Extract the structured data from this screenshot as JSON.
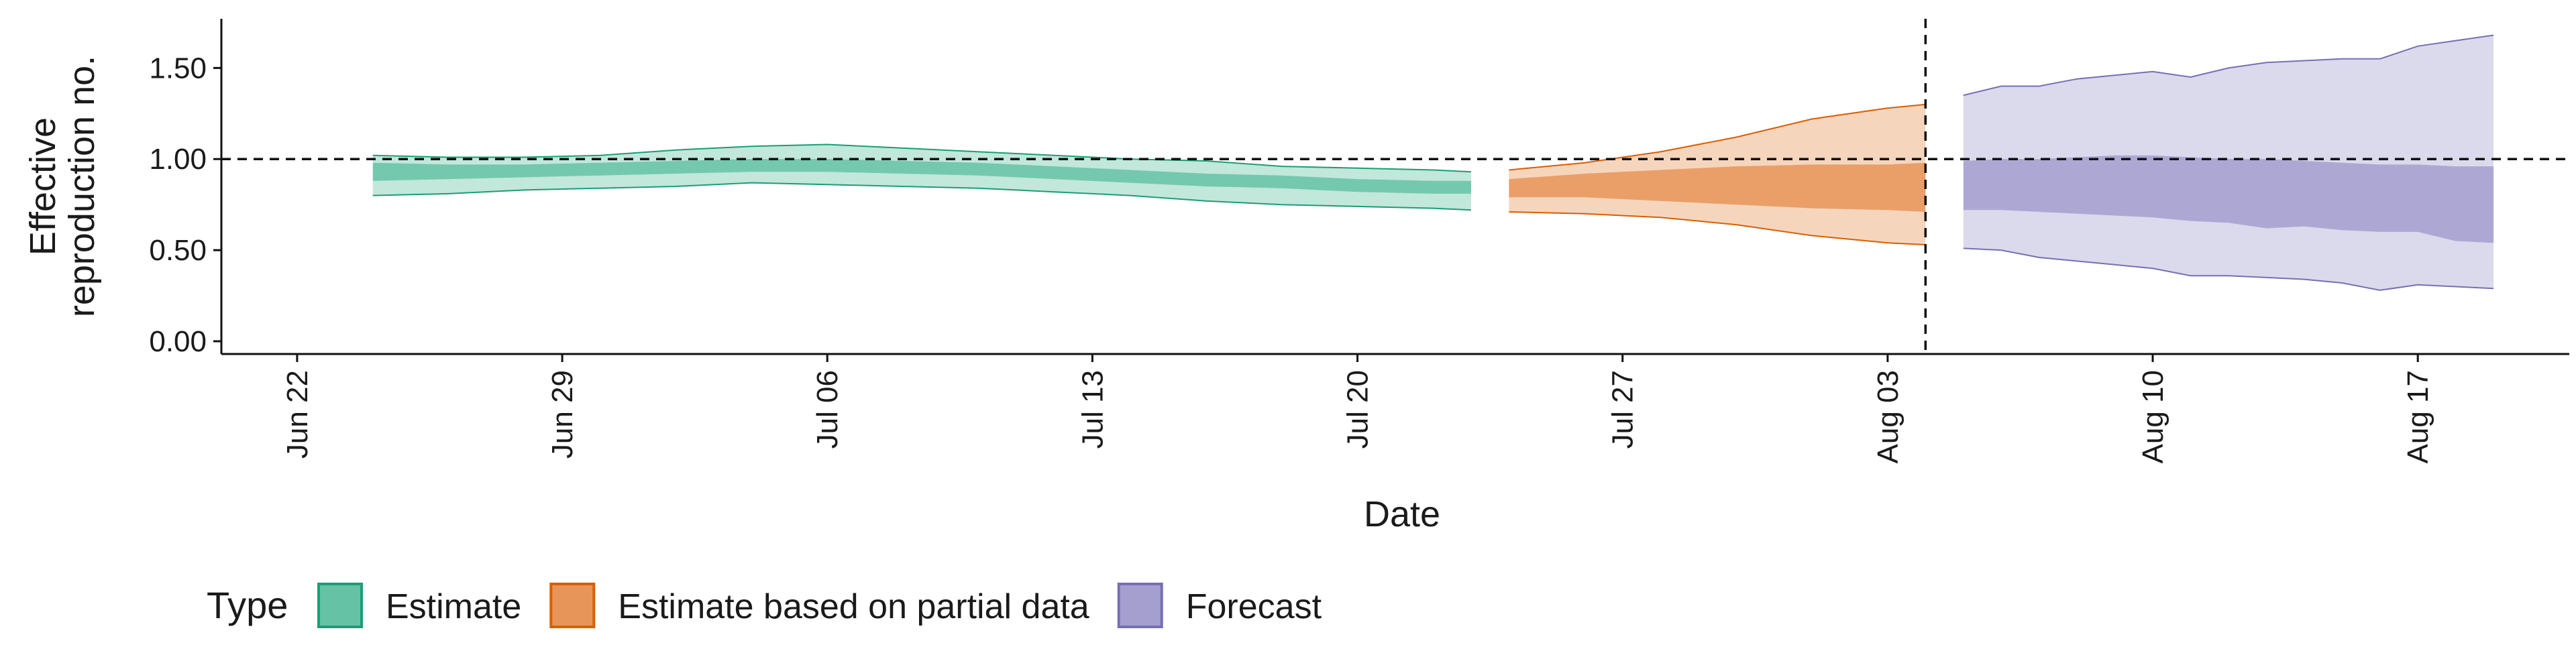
{
  "chart_data": {
    "type": "area",
    "xlabel": "Date",
    "ylabel": [
      "Effective",
      "reproduction no."
    ],
    "ylim": [
      -0.07,
      1.77
    ],
    "xlim": [
      "2020-06-20",
      "2020-08-21"
    ],
    "y_ticks": [
      0.0,
      0.5,
      1.0,
      1.5
    ],
    "y_tick_labels": [
      "0.00",
      "0.50",
      "1.00",
      "1.50"
    ],
    "x_ticks": [
      "2020-06-22",
      "2020-06-29",
      "2020-07-06",
      "2020-07-13",
      "2020-07-20",
      "2020-07-27",
      "2020-08-03",
      "2020-08-10",
      "2020-08-17"
    ],
    "x_tick_labels": [
      "Jun 22",
      "Jun 29",
      "Jul 06",
      "Jul 13",
      "Jul 20",
      "Jul 27",
      "Aug 03",
      "Aug 10",
      "Aug 17"
    ],
    "reference_hline": 1.0,
    "reference_vline": "2020-08-04",
    "grid": false,
    "legend": {
      "title": "Type",
      "position": "bottom-left",
      "entries": [
        "Estimate",
        "Estimate based on partial data",
        "Forecast"
      ]
    },
    "colors": {
      "Estimate": {
        "fill": "#66c2a5",
        "line": "#1b9e77"
      },
      "Estimate based on partial data": {
        "fill": "#e8955a",
        "line": "#d95f02"
      },
      "Forecast": {
        "fill": "#a49fcf",
        "line": "#7570b3"
      }
    },
    "series": [
      {
        "name": "Estimate",
        "x": [
          "2020-06-24",
          "2020-06-26",
          "2020-06-28",
          "2020-06-30",
          "2020-07-02",
          "2020-07-04",
          "2020-07-06",
          "2020-07-08",
          "2020-07-10",
          "2020-07-12",
          "2020-07-14",
          "2020-07-16",
          "2020-07-18",
          "2020-07-20",
          "2020-07-22",
          "2020-07-23"
        ],
        "lower90": [
          0.8,
          0.81,
          0.83,
          0.84,
          0.85,
          0.87,
          0.86,
          0.85,
          0.84,
          0.82,
          0.8,
          0.77,
          0.75,
          0.74,
          0.73,
          0.72
        ],
        "upper90": [
          1.02,
          1.01,
          1.01,
          1.02,
          1.05,
          1.07,
          1.08,
          1.06,
          1.04,
          1.02,
          1.0,
          0.99,
          0.96,
          0.95,
          0.94,
          0.93
        ],
        "lower50": [
          0.88,
          0.89,
          0.9,
          0.91,
          0.92,
          0.93,
          0.93,
          0.92,
          0.91,
          0.89,
          0.87,
          0.85,
          0.84,
          0.82,
          0.81,
          0.81
        ],
        "upper50": [
          0.98,
          0.97,
          0.97,
          0.98,
          0.99,
          1.0,
          1.0,
          0.99,
          0.98,
          0.96,
          0.94,
          0.92,
          0.91,
          0.89,
          0.88,
          0.88
        ]
      },
      {
        "name": "Estimate based on partial data",
        "x": [
          "2020-07-24",
          "2020-07-26",
          "2020-07-28",
          "2020-07-30",
          "2020-08-01",
          "2020-08-03",
          "2020-08-04"
        ],
        "lower90": [
          0.71,
          0.7,
          0.68,
          0.64,
          0.58,
          0.54,
          0.53
        ],
        "upper90": [
          0.94,
          0.98,
          1.04,
          1.12,
          1.22,
          1.28,
          1.3
        ],
        "lower50": [
          0.79,
          0.79,
          0.77,
          0.75,
          0.73,
          0.72,
          0.71
        ],
        "upper50": [
          0.89,
          0.92,
          0.94,
          0.96,
          0.97,
          0.97,
          0.98
        ]
      },
      {
        "name": "Forecast",
        "x": [
          "2020-08-05",
          "2020-08-06",
          "2020-08-07",
          "2020-08-08",
          "2020-08-09",
          "2020-08-10",
          "2020-08-11",
          "2020-08-12",
          "2020-08-13",
          "2020-08-14",
          "2020-08-15",
          "2020-08-16",
          "2020-08-17",
          "2020-08-18",
          "2020-08-19"
        ],
        "lower90": [
          0.51,
          0.5,
          0.46,
          0.44,
          0.42,
          0.4,
          0.36,
          0.36,
          0.35,
          0.34,
          0.32,
          0.28,
          0.31,
          0.3,
          0.29
        ],
        "upper90": [
          1.35,
          1.4,
          1.4,
          1.44,
          1.46,
          1.48,
          1.45,
          1.5,
          1.53,
          1.54,
          1.55,
          1.55,
          1.62,
          1.65,
          1.68
        ],
        "lower50": [
          0.72,
          0.72,
          0.71,
          0.7,
          0.69,
          0.68,
          0.66,
          0.65,
          0.62,
          0.63,
          0.61,
          0.6,
          0.6,
          0.55,
          0.54
        ],
        "upper50": [
          0.99,
          1.0,
          1.0,
          1.01,
          1.02,
          1.02,
          1.01,
          1.0,
          1.0,
          0.99,
          0.98,
          0.97,
          0.97,
          0.96,
          0.96
        ]
      }
    ]
  }
}
